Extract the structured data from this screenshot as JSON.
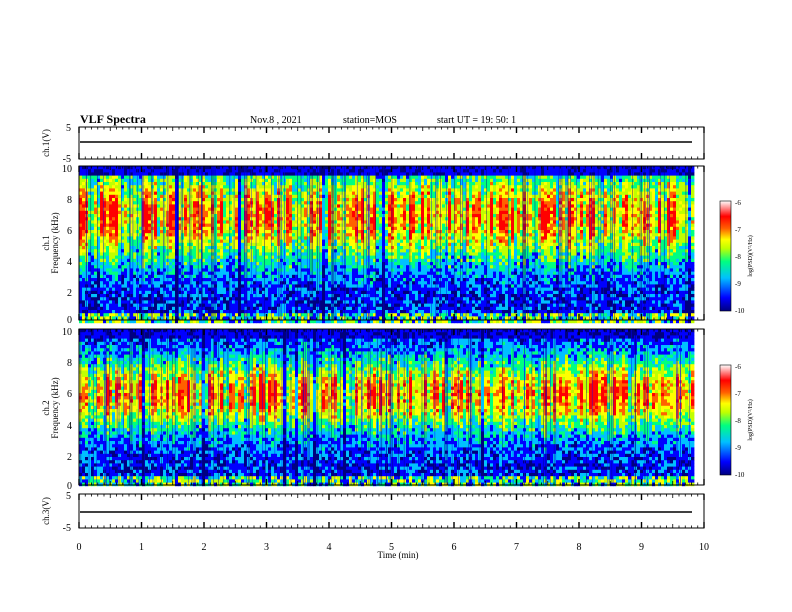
{
  "header": {
    "title": "VLF Spectra",
    "date": "Nov.8 , 2021",
    "station": "station=MOS",
    "start": "start UT = 19: 50: 1"
  },
  "chart_data": [
    {
      "type": "line",
      "ylabel": "ch.1(V)",
      "ylim": [
        -5,
        5
      ],
      "y_ticks": [
        "5",
        "-5"
      ],
      "series": [
        {
          "values": [
            -0.1
          ]
        }
      ]
    },
    {
      "type": "heatmap",
      "ylabel": "ch.1",
      "ylabel2": "Frequency (kHz)",
      "ylim": [
        0,
        10
      ],
      "y_ticks": [
        "0",
        "2",
        "4",
        "6",
        "8",
        "10"
      ],
      "xlim": [
        0,
        9.8
      ],
      "colorbar": {
        "label": "log(PSD)(V²/Hz)",
        "range": [
          -10,
          -6
        ],
        "ticks": [
          "-6",
          "-7",
          "-8",
          "-9",
          "-10"
        ]
      }
    },
    {
      "type": "heatmap",
      "ylabel": "ch.2",
      "ylabel2": "Frequency (kHz)",
      "ylim": [
        0,
        10
      ],
      "y_ticks": [
        "0",
        "2",
        "4",
        "6",
        "8",
        "10"
      ],
      "xlim": [
        0,
        9.8
      ],
      "colorbar": {
        "label": "log(PSD)(V²/Hz)",
        "range": [
          -10,
          -6
        ],
        "ticks": [
          "-6",
          "-7",
          "-8",
          "-9",
          "-10"
        ]
      }
    },
    {
      "type": "line",
      "ylabel": "ch.3(V)",
      "ylim": [
        -5,
        5
      ],
      "y_ticks": [
        "5",
        "-5"
      ],
      "series": [
        {
          "values": [
            -0.1
          ]
        }
      ]
    }
  ],
  "x_axis": {
    "label": "Time (min)",
    "range": [
      0,
      10
    ],
    "ticks": [
      "0",
      "1",
      "2",
      "3",
      "4",
      "5",
      "6",
      "7",
      "8",
      "9",
      "10"
    ]
  },
  "colors": {
    "spectrogram": [
      "#000080",
      "#0000ff",
      "#00c0ff",
      "#00ff80",
      "#c0ff00",
      "#ffff00",
      "#ff6000",
      "#ff0000",
      "#ffffff"
    ]
  }
}
